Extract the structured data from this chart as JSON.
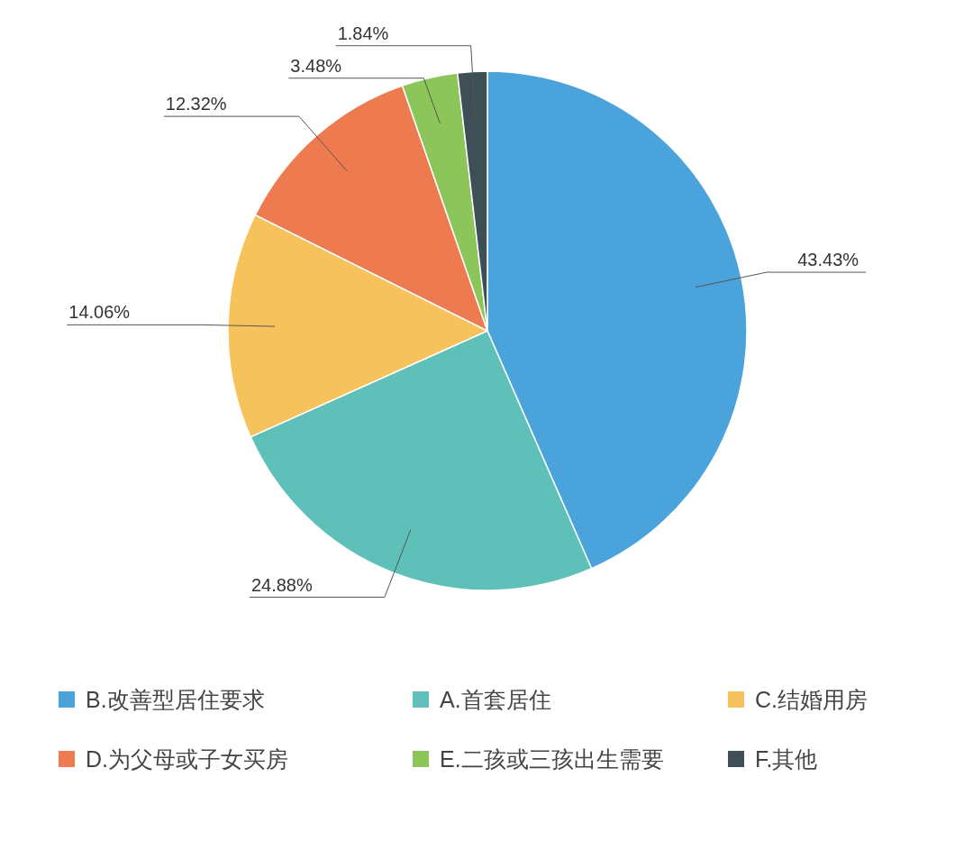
{
  "chart_data": {
    "type": "pie",
    "categories": [
      "B.改善型居住要求",
      "A.首套居住",
      "C.结婚用房",
      "D.为父母或子女买房",
      "E.二孩或三孩出生需要",
      "F.其他"
    ],
    "values": [
      43.43,
      24.88,
      14.06,
      12.32,
      3.48,
      1.84
    ],
    "colors": [
      "#4ba3dc",
      "#5ec0b9",
      "#f5c25c",
      "#ee7a50",
      "#8cc65a",
      "#3e4f58"
    ],
    "value_labels": [
      "43.43%",
      "24.88%",
      "14.06%",
      "12.32%",
      "3.48%",
      "1.84%"
    ],
    "legend": "bottom"
  }
}
